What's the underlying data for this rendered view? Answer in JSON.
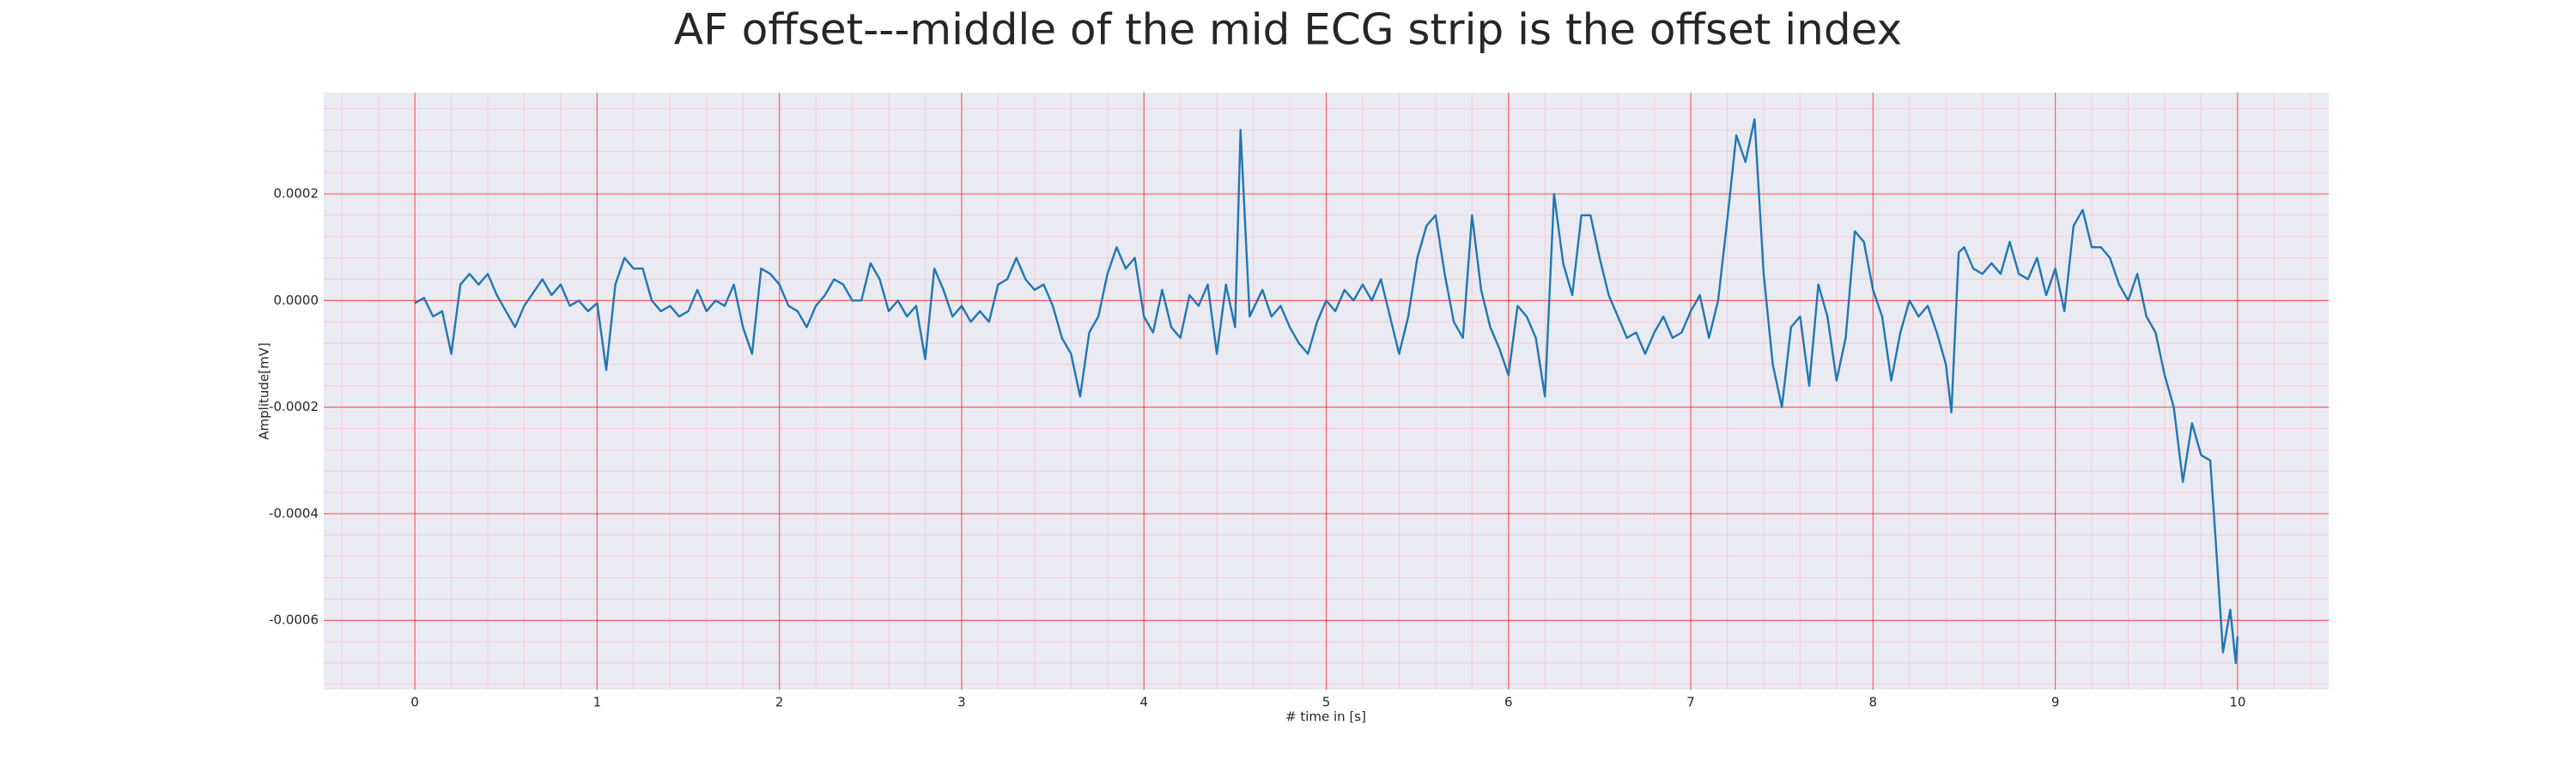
{
  "chart_data": {
    "type": "line",
    "title": "AF offset---middle of the mid ECG strip is the offset index",
    "xlabel": "# time in [s]",
    "ylabel": "Amplitude[mV]",
    "xlim": [
      -0.5,
      10.5
    ],
    "ylim": [
      -0.00073,
      0.00039
    ],
    "xticks": [
      0,
      1,
      2,
      3,
      4,
      5,
      6,
      7,
      8,
      9,
      10
    ],
    "yticks": [
      -0.0006,
      -0.0004,
      -0.0002,
      {
        "value": 0,
        "label": "0.0000"
      },
      0.0002
    ],
    "grid": true,
    "minor_grid": true,
    "series": [
      {
        "color": "#1f77b4",
        "x": [
          0,
          0.05,
          0.1,
          0.15,
          0.2,
          0.25,
          0.3,
          0.35,
          0.4,
          0.45,
          0.5,
          0.55,
          0.6,
          0.7,
          0.75,
          0.8,
          0.85,
          0.9,
          0.95,
          1.0,
          1.05,
          1.1,
          1.15,
          1.2,
          1.25,
          1.3,
          1.35,
          1.4,
          1.45,
          1.5,
          1.55,
          1.6,
          1.65,
          1.7,
          1.75,
          1.8,
          1.85,
          1.9,
          1.95,
          2.0,
          2.05,
          2.1,
          2.15,
          2.2,
          2.25,
          2.3,
          2.35,
          2.4,
          2.45,
          2.5,
          2.55,
          2.6,
          2.65,
          2.7,
          2.75,
          2.8,
          2.85,
          2.9,
          2.95,
          3.0,
          3.05,
          3.1,
          3.15,
          3.2,
          3.25,
          3.3,
          3.35,
          3.4,
          3.45,
          3.5,
          3.55,
          3.6,
          3.65,
          3.7,
          3.75,
          3.8,
          3.85,
          3.9,
          3.95,
          4.0,
          4.05,
          4.1,
          4.15,
          4.2,
          4.25,
          4.3,
          4.35,
          4.4,
          4.45,
          4.5,
          4.53,
          4.58,
          4.65,
          4.7,
          4.75,
          4.8,
          4.85,
          4.9,
          4.95,
          5.0,
          5.05,
          5.1,
          5.15,
          5.2,
          5.25,
          5.3,
          5.35,
          5.4,
          5.45,
          5.5,
          5.55,
          5.6,
          5.65,
          5.7,
          5.75,
          5.8,
          5.85,
          5.9,
          5.95,
          6.0,
          6.05,
          6.1,
          6.15,
          6.2,
          6.25,
          6.3,
          6.35,
          6.4,
          6.45,
          6.5,
          6.55,
          6.6,
          6.65,
          6.7,
          6.75,
          6.8,
          6.85,
          6.9,
          6.95,
          7.0,
          7.05,
          7.1,
          7.15,
          7.2,
          7.25,
          7.3,
          7.35,
          7.4,
          7.45,
          7.5,
          7.55,
          7.6,
          7.65,
          7.7,
          7.75,
          7.8,
          7.85,
          7.9,
          7.95,
          8.0,
          8.05,
          8.1,
          8.15,
          8.2,
          8.25,
          8.3,
          8.35,
          8.4,
          8.43,
          8.47,
          8.5,
          8.55,
          8.6,
          8.65,
          8.7,
          8.75,
          8.8,
          8.85,
          8.9,
          8.95,
          9.0,
          9.05,
          9.1,
          9.15,
          9.2,
          9.25,
          9.3,
          9.35,
          9.4,
          9.45,
          9.5,
          9.55,
          9.6,
          9.65,
          9.7,
          9.75,
          9.8,
          9.85,
          9.88,
          9.92,
          9.96,
          9.99,
          10.0
        ],
        "values": [
          -5e-06,
          5e-06,
          -3e-05,
          -2e-05,
          -0.0001,
          3e-05,
          5e-05,
          3e-05,
          5e-05,
          1e-05,
          -2e-05,
          -5e-05,
          -1e-05,
          4e-05,
          1e-05,
          3e-05,
          -1e-05,
          0.0,
          -2e-05,
          -5e-06,
          -0.00013,
          3e-05,
          8e-05,
          6e-05,
          6e-05,
          0.0,
          -2e-05,
          -1e-05,
          -3e-05,
          -2e-05,
          2e-05,
          -2e-05,
          0.0,
          -1e-05,
          3e-05,
          -5e-05,
          -0.0001,
          6e-05,
          5e-05,
          3e-05,
          -1e-05,
          -2e-05,
          -5e-05,
          -1e-05,
          1e-05,
          4e-05,
          3e-05,
          0.0,
          0.0,
          7e-05,
          4e-05,
          -2e-05,
          0.0,
          -3e-05,
          -1e-05,
          -0.00011,
          6e-05,
          2e-05,
          -3e-05,
          -1e-05,
          -4e-05,
          -2e-05,
          -4e-05,
          3e-05,
          4e-05,
          8e-05,
          4e-05,
          2e-05,
          3e-05,
          -1e-05,
          -7e-05,
          -0.0001,
          -0.00018,
          -6e-05,
          -3e-05,
          5e-05,
          0.0001,
          6e-05,
          8e-05,
          -3e-05,
          -6e-05,
          2e-05,
          -5e-05,
          -7e-05,
          1e-05,
          -1e-05,
          3e-05,
          -0.0001,
          3e-05,
          -5e-05,
          0.00032,
          -3e-05,
          2e-05,
          -3e-05,
          -1e-05,
          -5e-05,
          -8e-05,
          -0.0001,
          -4e-05,
          0.0,
          -2e-05,
          2e-05,
          0.0,
          3e-05,
          0.0,
          4e-05,
          -3e-05,
          -0.0001,
          -3e-05,
          8e-05,
          0.00014,
          0.00016,
          5e-05,
          -4e-05,
          -7e-05,
          0.00016,
          2e-05,
          -5e-05,
          -9e-05,
          -0.00014,
          -1e-05,
          -3e-05,
          -7e-05,
          -0.00018,
          0.0002,
          7e-05,
          1e-05,
          0.00016,
          0.00016,
          8e-05,
          1e-05,
          -3e-05,
          -7e-05,
          -6e-05,
          -0.0001,
          -6e-05,
          -3e-05,
          -7e-05,
          -6e-05,
          -2e-05,
          1e-05,
          -7e-05,
          0.0,
          0.00015,
          0.00031,
          0.00026,
          0.00034,
          5e-05,
          -0.00012,
          -0.0002,
          -5e-05,
          -3e-05,
          -0.00016,
          3e-05,
          -3e-05,
          -0.00015,
          -7e-05,
          0.00013,
          0.00011,
          2e-05,
          -3e-05,
          -0.00015,
          -6e-05,
          0.0,
          -3e-05,
          -1e-05,
          -6e-05,
          -0.00012,
          -0.00021,
          9e-05,
          0.0001,
          6e-05,
          5e-05,
          7e-05,
          5e-05,
          0.00011,
          5e-05,
          4e-05,
          8e-05,
          1e-05,
          6e-05,
          -2e-05,
          0.00014,
          0.00017,
          0.0001,
          0.0001,
          8e-05,
          3e-05,
          0.0,
          5e-05,
          -3e-05,
          -6e-05,
          -0.00014,
          -0.0002,
          -0.00034,
          -0.00023,
          -0.00029,
          -0.0003,
          -0.00045,
          -0.00066,
          -0.00058,
          -0.00068,
          -0.00063
        ]
      }
    ]
  }
}
